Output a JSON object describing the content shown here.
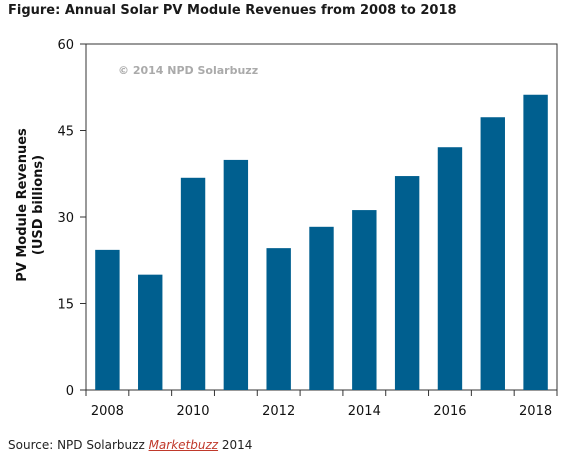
{
  "figure_title": "Figure: Annual Solar PV Module Revenues from 2008 to 2018",
  "watermark": "© 2014 NPD Solarbuzz",
  "source": {
    "prefix": "Source: NPD Solarbuzz ",
    "link": "Marketbuzz",
    "suffix": " 2014"
  },
  "colors": {
    "bar": "#005f8f",
    "axis": "#333333"
  },
  "chart_data": {
    "type": "bar",
    "title": "",
    "ylabel_line1": "PV Module Revenues",
    "ylabel_line2": "(USD billions)",
    "xlabel": "",
    "categories": [
      "2008",
      "2009",
      "2010",
      "2011",
      "2012",
      "2013",
      "2014",
      "2015",
      "2016",
      "2017",
      "2018"
    ],
    "values": [
      24.3,
      20.0,
      36.8,
      39.9,
      24.6,
      28.3,
      31.2,
      37.1,
      42.1,
      47.3,
      51.2
    ],
    "x_tick_labels": [
      "2008",
      "2010",
      "2012",
      "2014",
      "2016",
      "2018"
    ],
    "y_ticks": [
      "0",
      "15",
      "30",
      "45",
      "60"
    ],
    "ylim": [
      0,
      60
    ],
    "grid": false
  }
}
